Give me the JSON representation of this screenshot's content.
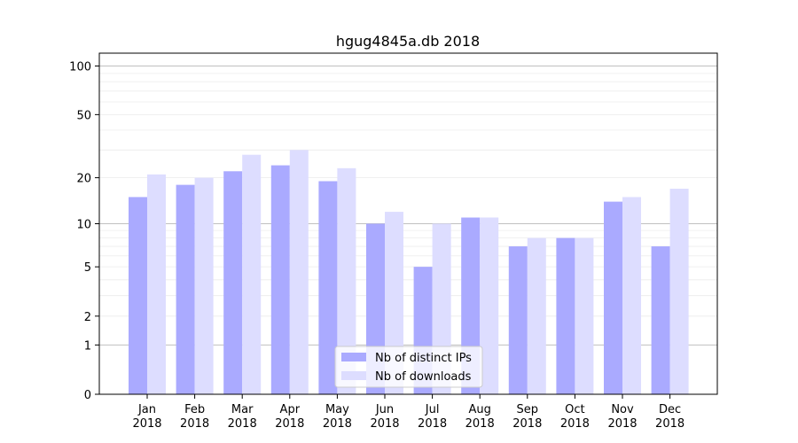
{
  "chart_data": {
    "type": "bar",
    "title": "hgug4845a.db 2018",
    "xlabel": "",
    "ylabel": "",
    "yscale": "log(1+y)",
    "ylim": [
      0,
      120
    ],
    "yticks": [
      0,
      1,
      2,
      5,
      10,
      20,
      50,
      100
    ],
    "grid": "horizontal",
    "legend_position": "bottom-center",
    "categories": [
      [
        "Jan",
        "2018"
      ],
      [
        "Feb",
        "2018"
      ],
      [
        "Mar",
        "2018"
      ],
      [
        "Apr",
        "2018"
      ],
      [
        "May",
        "2018"
      ],
      [
        "Jun",
        "2018"
      ],
      [
        "Jul",
        "2018"
      ],
      [
        "Aug",
        "2018"
      ],
      [
        "Sep",
        "2018"
      ],
      [
        "Oct",
        "2018"
      ],
      [
        "Nov",
        "2018"
      ],
      [
        "Dec",
        "2018"
      ]
    ],
    "series": [
      {
        "name": "Nb of distinct IPs",
        "color": "#aaaaff",
        "values": [
          15,
          18,
          22,
          24,
          19,
          10,
          5,
          11,
          7,
          8,
          14,
          7
        ]
      },
      {
        "name": "Nb of downloads",
        "color": "#ddddff",
        "values": [
          21,
          20,
          28,
          30,
          23,
          12,
          10,
          11,
          8,
          8,
          15,
          17
        ]
      }
    ]
  }
}
